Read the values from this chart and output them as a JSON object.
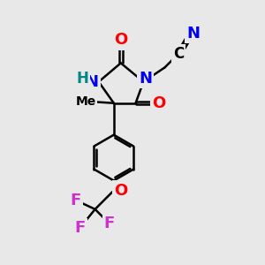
{
  "bg_color": "#e8e8e8",
  "atom_colors": {
    "N": "#0000ee",
    "O": "#ff0000",
    "F": "#cc33cc",
    "C": "#000000",
    "H_label": "#008888"
  },
  "bond_color": "#000000",
  "bond_width": 1.8,
  "font_size_atom": 13,
  "font_size_small": 11
}
